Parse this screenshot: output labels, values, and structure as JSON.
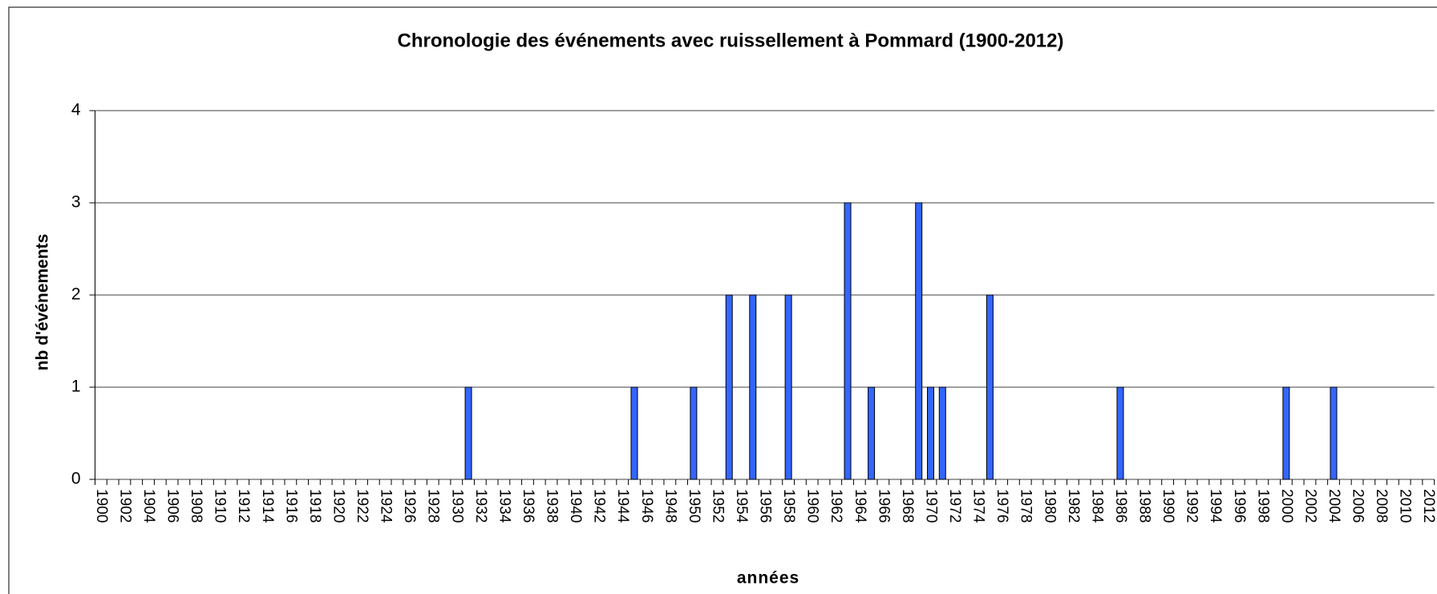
{
  "chart_data": {
    "type": "bar",
    "title": "Chronologie des événements avec ruissellement à Pommard (1900-2012)",
    "xlabel": "années",
    "ylabel": "nb d'événements",
    "categories": [
      "1900",
      null,
      "1902",
      null,
      "1904",
      null,
      "1906",
      null,
      "1908",
      null,
      "1910",
      null,
      "1912",
      null,
      "1914",
      null,
      "1916",
      null,
      "1918",
      null,
      "1920",
      null,
      "1922",
      null,
      "1924",
      null,
      "1926",
      null,
      "1928",
      null,
      "1930",
      null,
      "1932",
      null,
      "1934",
      null,
      "1936",
      null,
      "1938",
      null,
      "1940",
      null,
      "1942",
      null,
      "1944",
      null,
      "1946",
      null,
      "1948",
      null,
      "1950",
      null,
      "1952",
      null,
      "1954",
      null,
      "1956",
      null,
      "1958",
      null,
      "1960",
      null,
      "1962",
      null,
      "1964",
      null,
      "1966",
      null,
      "1968",
      null,
      "1970",
      null,
      "1972",
      null,
      "1974",
      null,
      "1976",
      null,
      "1978",
      null,
      "1980",
      null,
      "1982",
      null,
      "1984",
      null,
      "1986",
      null,
      "1988",
      null,
      "1990",
      null,
      "1992",
      null,
      "1994",
      null,
      "1996",
      null,
      "1998",
      null,
      "2000",
      null,
      "2002",
      null,
      "2004",
      null,
      "2006",
      null,
      "2008",
      null,
      "2010",
      null,
      "2012"
    ],
    "values": [
      0,
      0,
      0,
      0,
      0,
      0,
      0,
      0,
      0,
      0,
      0,
      0,
      0,
      0,
      0,
      0,
      0,
      0,
      0,
      0,
      0,
      0,
      0,
      0,
      0,
      0,
      0,
      0,
      0,
      0,
      0,
      1,
      0,
      0,
      0,
      0,
      0,
      0,
      0,
      0,
      0,
      0,
      0,
      0,
      0,
      1,
      0,
      0,
      0,
      0,
      1,
      0,
      0,
      2,
      0,
      2,
      0,
      0,
      2,
      0,
      0,
      0,
      0,
      3,
      0,
      1,
      0,
      0,
      0,
      3,
      1,
      1,
      0,
      0,
      0,
      2,
      0,
      0,
      0,
      0,
      0,
      0,
      0,
      0,
      0,
      0,
      1,
      0,
      0,
      0,
      0,
      0,
      0,
      0,
      0,
      0,
      0,
      0,
      0,
      0,
      1,
      0,
      0,
      0,
      1,
      0,
      0,
      0,
      0,
      0,
      0,
      0,
      0
    ],
    "color": "#3366ff",
    "ylim": [
      0,
      4
    ],
    "yticks": [
      0,
      1,
      2,
      3,
      4
    ],
    "grid": true
  }
}
